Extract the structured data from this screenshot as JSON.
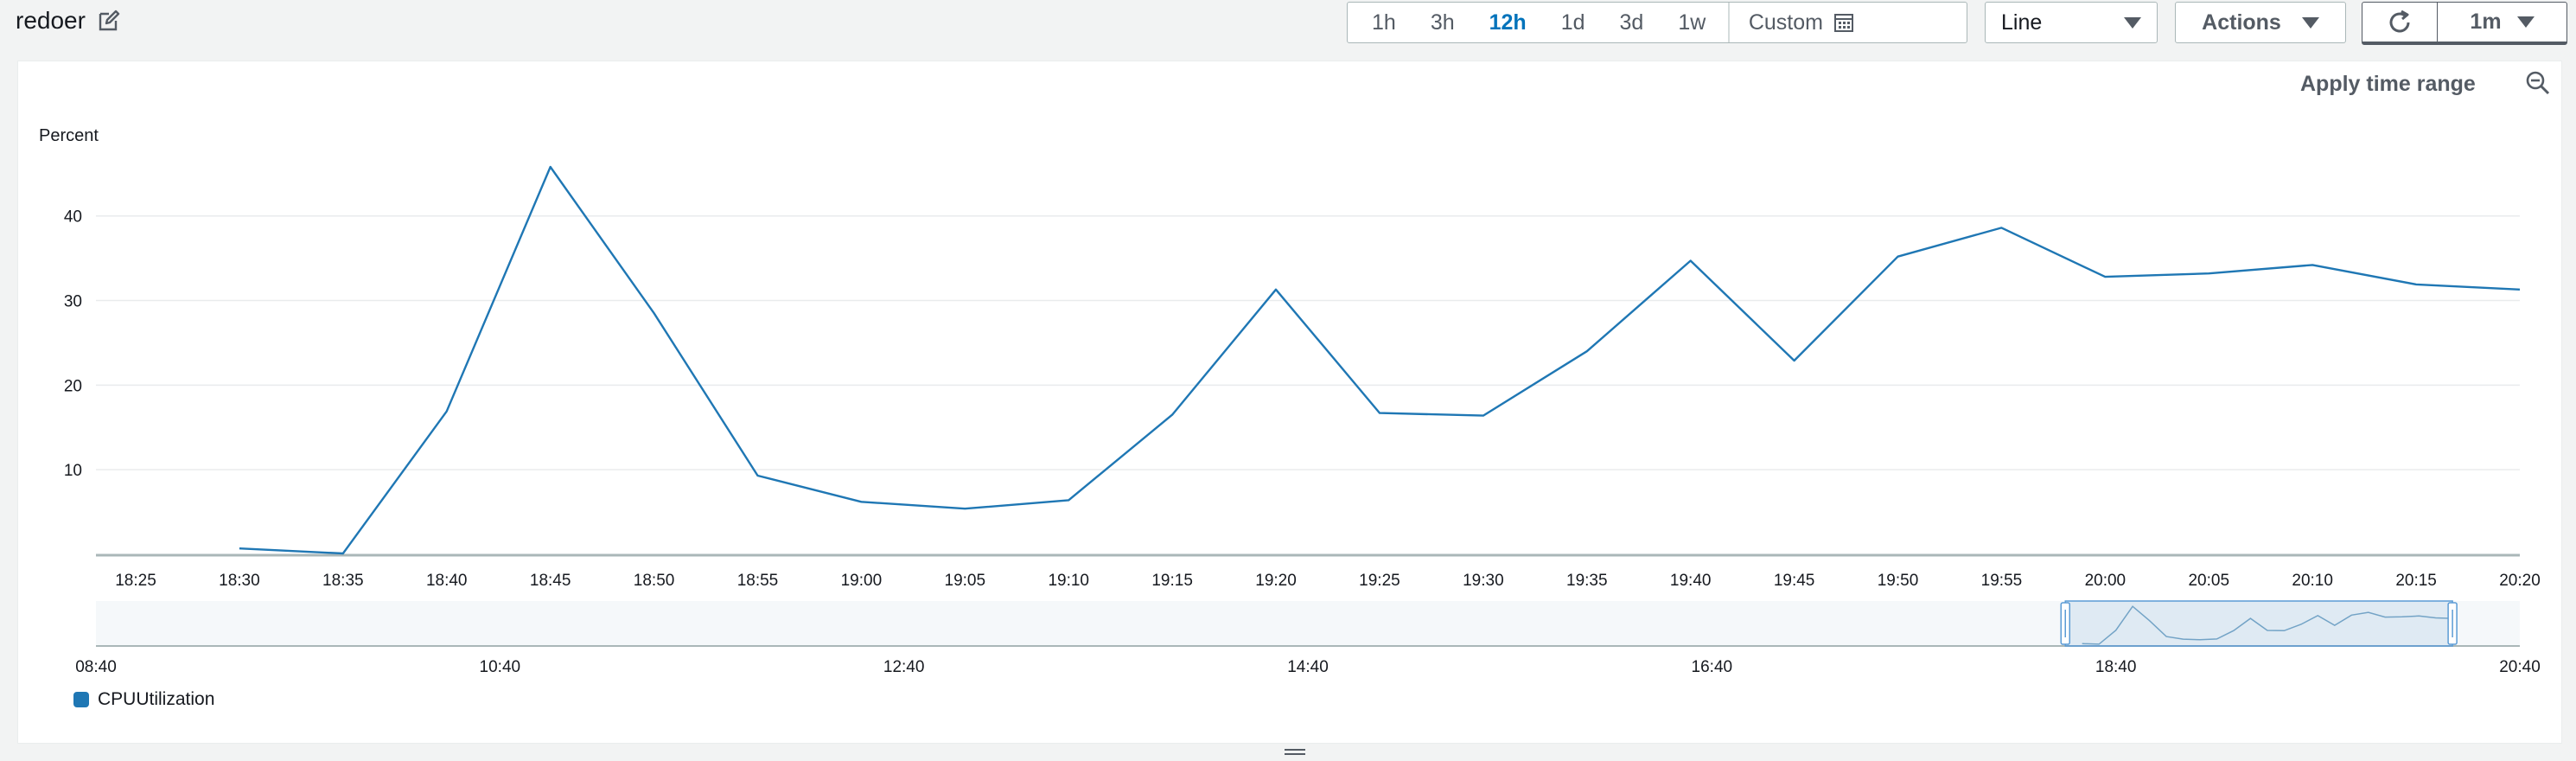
{
  "header": {
    "title": "redoer",
    "edit_icon": "edit-icon",
    "ranges": [
      "1h",
      "3h",
      "12h",
      "1d",
      "3d",
      "1w"
    ],
    "active_range": "12h",
    "custom_label": "Custom",
    "calendar_icon": "calendar-icon",
    "view_select": "Line",
    "actions_label": "Actions",
    "refresh_icon": "refresh-icon",
    "interval_label": "1m"
  },
  "panel": {
    "apply_range_label": "Apply time range",
    "zoom_icon": "zoom-out-icon",
    "legend_label": "CPUUtilization",
    "legend_color": "#1f77b4"
  },
  "chart_data": {
    "type": "line",
    "ylabel": "Percent",
    "ylim": [
      0,
      46
    ],
    "yticks": [
      10,
      20,
      30,
      40
    ],
    "xticks": [
      "18:25",
      "18:30",
      "18:35",
      "18:40",
      "18:45",
      "18:50",
      "18:55",
      "19:00",
      "19:05",
      "19:10",
      "19:15",
      "19:20",
      "19:25",
      "19:30",
      "19:35",
      "19:40",
      "19:45",
      "19:50",
      "19:55",
      "20:00",
      "20:05",
      "20:10",
      "20:15",
      "20:20"
    ],
    "series": [
      {
        "name": "CPUUtilization",
        "color": "#1f77b4",
        "x": [
          "18:30",
          "18:35",
          "18:40",
          "18:45",
          "18:50",
          "18:55",
          "19:00",
          "19:05",
          "19:10",
          "19:15",
          "19:20",
          "19:25",
          "19:30",
          "19:35",
          "19:40",
          "19:45",
          "19:50",
          "19:55",
          "20:00",
          "20:05",
          "20:10",
          "20:15",
          "20:20"
        ],
        "values": [
          0.7,
          0.1,
          16.9,
          45.8,
          28.5,
          9.3,
          6.2,
          5.4,
          6.4,
          16.5,
          31.3,
          16.7,
          16.4,
          24.0,
          34.7,
          22.9,
          35.2,
          38.6,
          32.8,
          33.2,
          34.2,
          31.9,
          31.3
        ]
      }
    ],
    "overview": {
      "xticks": [
        "08:40",
        "10:40",
        "12:40",
        "14:40",
        "16:40",
        "18:40",
        "20:40"
      ],
      "selection": [
        "18:25",
        "20:20"
      ]
    }
  }
}
